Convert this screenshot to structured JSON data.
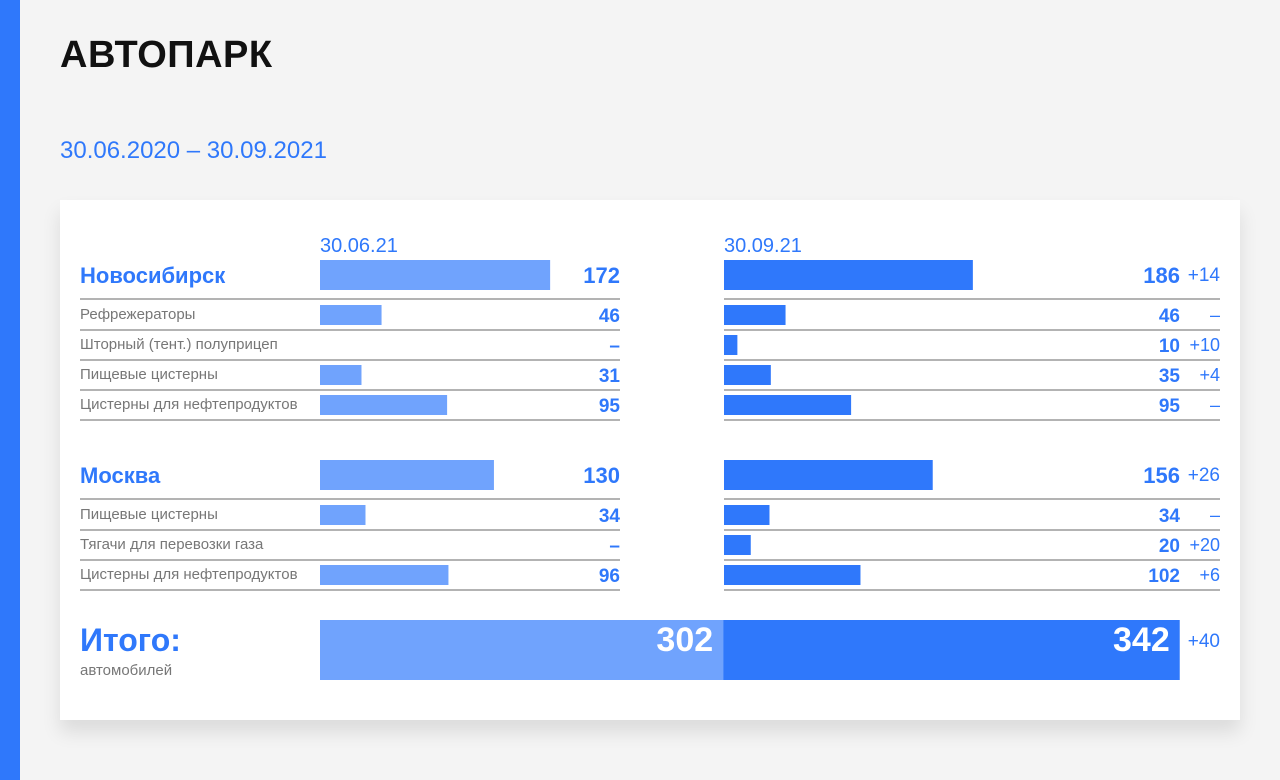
{
  "page": {
    "title": "АВТОПАРК",
    "date_range": "30.06.2020 – 30.09.2021"
  },
  "colors": {
    "light": "#70a3fd",
    "dark": "#2f78fb",
    "line": "#9a9a9a",
    "accent": "#2f78fb"
  },
  "chart_data": {
    "type": "bar",
    "periods": [
      "30.06.21",
      "30.09.21"
    ],
    "groups": [
      {
        "name": "Новосибирск",
        "values": [
          172,
          186
        ],
        "delta": "+14",
        "rows": [
          {
            "label": "Рефрежераторы",
            "values": [
              46,
              46
            ],
            "display": [
              "46",
              "46"
            ],
            "delta": "–"
          },
          {
            "label": "Шторный (тент.) полуприцеп",
            "values": [
              0,
              10
            ],
            "display": [
              "–",
              "10"
            ],
            "delta": "+10"
          },
          {
            "label": "Пищевые цистерны",
            "values": [
              31,
              35
            ],
            "display": [
              "31",
              "35"
            ],
            "delta": "+4"
          },
          {
            "label": "Цистерны для нефтепродуктов",
            "values": [
              95,
              95
            ],
            "display": [
              "95",
              "95"
            ],
            "delta": "–"
          }
        ]
      },
      {
        "name": "Москва",
        "values": [
          130,
          156
        ],
        "delta": "+26",
        "rows": [
          {
            "label": "Пищевые цистерны",
            "values": [
              34,
              34
            ],
            "display": [
              "34",
              "34"
            ],
            "delta": "–"
          },
          {
            "label": "Тягачи для перевозки газа",
            "values": [
              0,
              20
            ],
            "display": [
              "–",
              "20"
            ],
            "delta": "+20"
          },
          {
            "label": "Цистерны для нефтепродуктов",
            "values": [
              96,
              102
            ],
            "display": [
              "96",
              "102"
            ],
            "delta": "+6"
          }
        ]
      }
    ],
    "total": {
      "label": "Итого:",
      "sublabel": "автомобилей",
      "values": [
        302,
        342
      ],
      "delta": "+40"
    }
  }
}
